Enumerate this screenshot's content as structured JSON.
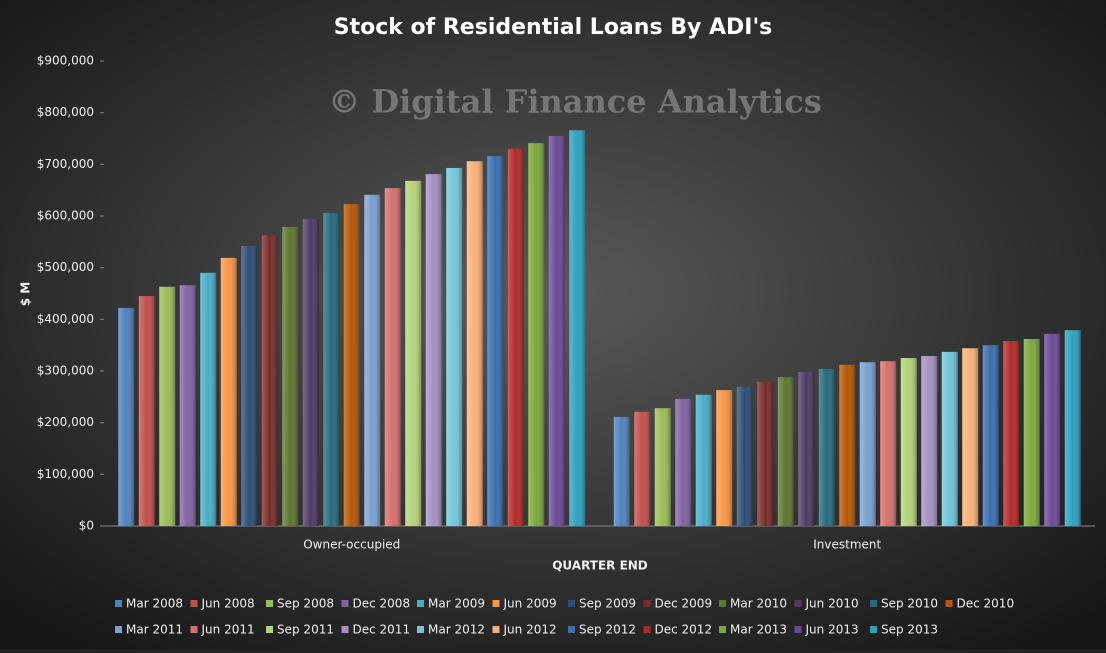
{
  "chart_data": {
    "type": "bar",
    "title": "Stock of Residential Loans By ADI's",
    "watermark": "© Digital Finance Analytics",
    "y_label": "$ M",
    "x_label": "QUARTER  END",
    "categories": [
      "Owner-occupied",
      "Investment"
    ],
    "ylim": [
      0,
      900000
    ],
    "yticks": [
      {
        "value": 0,
        "label": "$0"
      },
      {
        "value": 100000,
        "label": "$100,000"
      },
      {
        "value": 200000,
        "label": "$200,000"
      },
      {
        "value": 300000,
        "label": "$300,000"
      },
      {
        "value": 400000,
        "label": "$400,000"
      },
      {
        "value": 500000,
        "label": "$500,000"
      },
      {
        "value": 600000,
        "label": "$600,000"
      },
      {
        "value": 700000,
        "label": "$700,000"
      },
      {
        "value": 800000,
        "label": "$800,000"
      },
      {
        "value": 900000,
        "label": "$900,000"
      }
    ],
    "grid": false,
    "legend": "bottom",
    "series": [
      {
        "name": "Mar 2008",
        "color": "#4f81bd",
        "values": [
          422000,
          211000
        ]
      },
      {
        "name": "Jun 2008",
        "color": "#c0504d",
        "values": [
          445000,
          221000
        ]
      },
      {
        "name": "Sep 2008",
        "color": "#9bbb59",
        "values": [
          463000,
          228000
        ]
      },
      {
        "name": "Dec 2008",
        "color": "#8064a2",
        "values": [
          466000,
          246000
        ]
      },
      {
        "name": "Mar 2009",
        "color": "#4bacc6",
        "values": [
          490000,
          254000
        ]
      },
      {
        "name": "Jun 2009",
        "color": "#f79646",
        "values": [
          519000,
          263000
        ]
      },
      {
        "name": "Sep 2009",
        "color": "#2c4d75",
        "values": [
          542000,
          269000
        ]
      },
      {
        "name": "Dec 2009",
        "color": "#772c2a",
        "values": [
          563000,
          279000
        ]
      },
      {
        "name": "Mar 2010",
        "color": "#5f7530",
        "values": [
          579000,
          288000
        ]
      },
      {
        "name": "Jun 2010",
        "color": "#4d3b62",
        "values": [
          594000,
          298000
        ]
      },
      {
        "name": "Sep 2010",
        "color": "#276a7c",
        "values": [
          606000,
          304000
        ]
      },
      {
        "name": "Dec 2010",
        "color": "#b65708",
        "values": [
          623000,
          312000
        ]
      },
      {
        "name": "Mar 2011",
        "color": "#7c9fd1",
        "values": [
          641000,
          317000
        ]
      },
      {
        "name": "Jun 2011",
        "color": "#d46f6c",
        "values": [
          654000,
          319000
        ]
      },
      {
        "name": "Sep 2011",
        "color": "#b4d27b",
        "values": [
          668000,
          325000
        ]
      },
      {
        "name": "Dec 2011",
        "color": "#a491c2",
        "values": [
          681000,
          329000
        ]
      },
      {
        "name": "Mar 2012",
        "color": "#71c6da",
        "values": [
          693000,
          337000
        ]
      },
      {
        "name": "Jun 2012",
        "color": "#f9b078",
        "values": [
          706000,
          344000
        ]
      },
      {
        "name": "Sep 2012",
        "color": "#3a6db0",
        "values": [
          716000,
          350000
        ]
      },
      {
        "name": "Dec 2012",
        "color": "#b02a27",
        "values": [
          730000,
          358000
        ]
      },
      {
        "name": "Mar 2013",
        "color": "#7ba83b",
        "values": [
          741000,
          362000
        ]
      },
      {
        "name": "Jun 2013",
        "color": "#6a4a96",
        "values": [
          755000,
          372000
        ]
      },
      {
        "name": "Sep 2013",
        "color": "#2ea0bf",
        "values": [
          766000,
          379000
        ]
      }
    ]
  }
}
